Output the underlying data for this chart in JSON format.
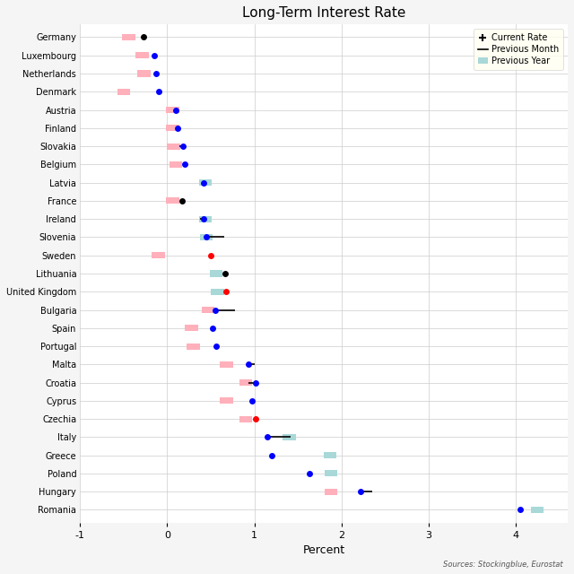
{
  "title": "Long-Term Interest Rate",
  "xlabel": "Percent",
  "source_text": "Sources: Stockingblue, Eurostat",
  "xlim": [
    -0.75,
    4.6
  ],
  "fig_bg": "#f5f5f5",
  "plot_bg": "#ffffff",
  "grid_color": "#cccccc",
  "countries": [
    "Germany",
    "Luxembourg",
    "Netherlands",
    "Denmark",
    "Austria",
    "Finland",
    "Slovakia",
    "Belgium",
    "Latvia",
    "France",
    "Ireland",
    "Slovenia",
    "Sweden",
    "Lithuania",
    "United Kingdom",
    "Bulgaria",
    "Spain",
    "Portugal",
    "Malta",
    "Croatia",
    "Cyprus",
    "Czechia",
    "Italy",
    "Greece",
    "Poland",
    "Hungary",
    "Romania"
  ],
  "current_rate": [
    -0.27,
    -0.15,
    -0.13,
    -0.1,
    0.1,
    0.12,
    0.18,
    0.2,
    0.42,
    0.17,
    0.42,
    0.45,
    0.5,
    0.67,
    0.68,
    0.55,
    0.52,
    0.56,
    0.93,
    1.02,
    0.97,
    1.02,
    1.15,
    1.2,
    1.63,
    2.22,
    4.05
  ],
  "prev_month_end": [
    -0.27,
    -0.15,
    -0.13,
    -0.1,
    0.1,
    0.12,
    0.14,
    0.2,
    0.42,
    0.17,
    0.38,
    0.65,
    0.5,
    0.67,
    0.68,
    0.78,
    0.52,
    0.56,
    1.0,
    0.93,
    0.97,
    1.02,
    1.42,
    1.2,
    1.63,
    2.35,
    4.05
  ],
  "prev_year": [
    -0.44,
    -0.29,
    -0.27,
    -0.5,
    0.06,
    0.06,
    0.07,
    0.1,
    0.44,
    0.06,
    0.44,
    0.45,
    -0.1,
    0.56,
    0.58,
    0.47,
    0.28,
    0.3,
    0.68,
    0.9,
    0.68,
    0.9,
    1.4,
    1.87,
    1.88,
    1.88,
    4.25
  ],
  "current_colors": [
    "black",
    "blue",
    "blue",
    "blue",
    "blue",
    "blue",
    "blue",
    "blue",
    "blue",
    "black",
    "blue",
    "blue",
    "red",
    "black",
    "red",
    "blue",
    "blue",
    "blue",
    "blue",
    "blue",
    "blue",
    "red",
    "blue",
    "blue",
    "blue",
    "blue",
    "blue"
  ],
  "prev_year_colors": [
    "pink",
    "pink",
    "pink",
    "pink",
    "pink",
    "pink",
    "pink",
    "pink",
    "lightcyan",
    "pink",
    "lightcyan",
    "lightcyan",
    "pink",
    "lightcyan",
    "lightcyan",
    "pink",
    "pink",
    "pink",
    "pink",
    "pink",
    "pink",
    "pink",
    "lightcyan",
    "lightcyan",
    "lightcyan",
    "pink",
    "lightcyan"
  ],
  "has_prev_month_line": [
    false,
    false,
    false,
    false,
    false,
    false,
    true,
    false,
    false,
    false,
    true,
    true,
    false,
    false,
    false,
    true,
    false,
    false,
    true,
    true,
    false,
    false,
    true,
    false,
    false,
    true,
    false
  ],
  "has_prev_year": [
    true,
    true,
    true,
    true,
    true,
    true,
    true,
    true,
    true,
    true,
    true,
    true,
    true,
    true,
    true,
    true,
    true,
    true,
    true,
    true,
    true,
    true,
    true,
    true,
    true,
    true,
    true
  ],
  "legend_bg": "#fffff0",
  "pink_color": "#FFB0BA",
  "cyan_color": "#A8D8D8",
  "dot_size": 5,
  "bar_height": 0.35,
  "bar_width": 0.15
}
